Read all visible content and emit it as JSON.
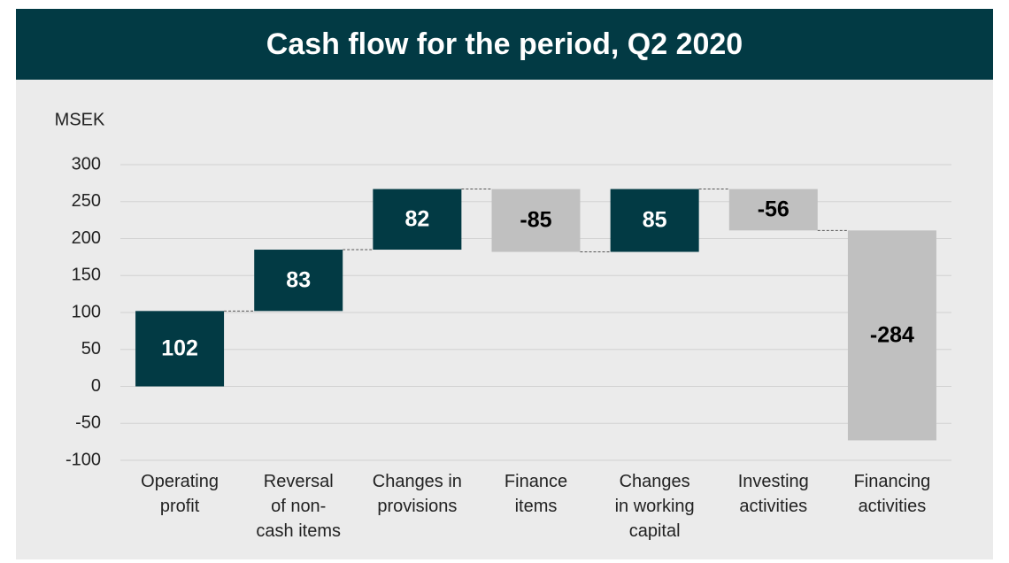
{
  "chart_data": {
    "type": "waterfall",
    "title": "Cash flow for the period, Q2 2020",
    "y_label": "MSEK",
    "categories": [
      "Operating\nprofit",
      "Reversal\nof non-\ncash items",
      "Changes in\nprovisions",
      "Finance\nitems",
      "Changes\nin working\ncapital",
      "Investing\nactivities",
      "Financing\nactivities"
    ],
    "values": [
      102,
      83,
      82,
      -85,
      85,
      -56,
      -284
    ],
    "positive_color": "#023a44",
    "negative_color": "#c0c0c0",
    "ylim": [
      -100,
      300
    ],
    "yticks": [
      -100,
      -50,
      0,
      50,
      100,
      150,
      200,
      250,
      300
    ],
    "grid": true
  }
}
